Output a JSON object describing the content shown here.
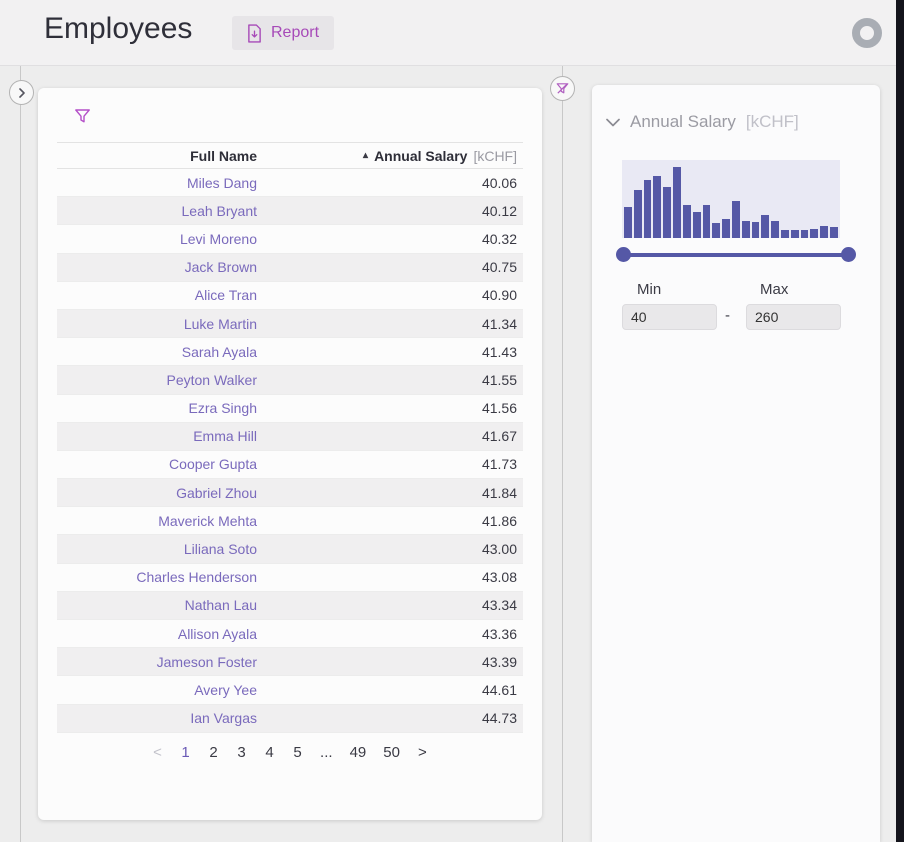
{
  "header": {
    "title": "Employees",
    "report_label": "Report"
  },
  "table": {
    "columns": {
      "name": "Full Name",
      "salary": "Annual Salary",
      "salary_unit": "[kCHF]",
      "sort_indicator": "▴"
    },
    "rows": [
      {
        "name": "Miles Dang",
        "salary": "40.06"
      },
      {
        "name": "Leah Bryant",
        "salary": "40.12"
      },
      {
        "name": "Levi Moreno",
        "salary": "40.32"
      },
      {
        "name": "Jack Brown",
        "salary": "40.75"
      },
      {
        "name": "Alice Tran",
        "salary": "40.90"
      },
      {
        "name": "Luke Martin",
        "salary": "41.34"
      },
      {
        "name": "Sarah Ayala",
        "salary": "41.43"
      },
      {
        "name": "Peyton Walker",
        "salary": "41.55"
      },
      {
        "name": "Ezra Singh",
        "salary": "41.56"
      },
      {
        "name": "Emma Hill",
        "salary": "41.67"
      },
      {
        "name": "Cooper Gupta",
        "salary": "41.73"
      },
      {
        "name": "Gabriel Zhou",
        "salary": "41.84"
      },
      {
        "name": "Maverick Mehta",
        "salary": "41.86"
      },
      {
        "name": "Liliana Soto",
        "salary": "43.00"
      },
      {
        "name": "Charles Henderson",
        "salary": "43.08"
      },
      {
        "name": "Nathan Lau",
        "salary": "43.34"
      },
      {
        "name": "Allison Ayala",
        "salary": "43.36"
      },
      {
        "name": "Jameson Foster",
        "salary": "43.39"
      },
      {
        "name": "Avery Yee",
        "salary": "44.61"
      },
      {
        "name": "Ian Vargas",
        "salary": "44.73"
      }
    ]
  },
  "pagination": {
    "prev": "<",
    "next": ">",
    "pages": [
      "1",
      "2",
      "3",
      "4",
      "5",
      "...",
      "49",
      "50"
    ],
    "current": "1"
  },
  "filter_panel": {
    "title": "Annual Salary",
    "unit": "[kCHF]",
    "min_label": "Min",
    "max_label": "Max",
    "separator": "-",
    "min_value": "40",
    "max_value": "260"
  },
  "chart_data": {
    "type": "bar",
    "title": "Annual Salary [kCHF] distribution histogram",
    "x_implied_range": [
      40,
      260
    ],
    "bins": 22,
    "values_are": "relative bar heights in % of chart height",
    "values": [
      40,
      62,
      75,
      79,
      65,
      91,
      42,
      33,
      42,
      19,
      24,
      48,
      22,
      20,
      29,
      22,
      10,
      10,
      10,
      12,
      15,
      14
    ],
    "xlabel": "",
    "ylabel": "",
    "grid": false,
    "legend": false
  },
  "colors": {
    "accent_indigo": "#5558a6",
    "accent_magenta": "#a74ab8",
    "link_purple": "#7a6abc",
    "histogram_bg": "#e9e9f4",
    "header_bg": "#f2f1f2"
  }
}
